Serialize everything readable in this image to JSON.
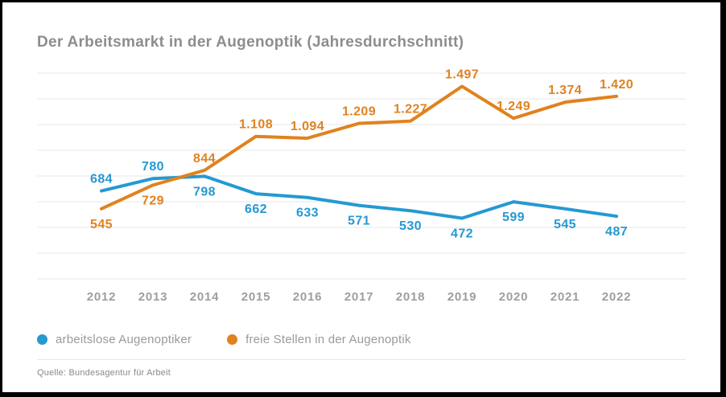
{
  "title": "Der Arbeitsmarkt in der Augenoptik (Jahresdurchschnitt)",
  "source": "Quelle: Bundesagentur für Arbeit",
  "colors": {
    "blue": "#2599d2",
    "orange": "#e0821f",
    "gridline": "#e7e7e7",
    "title_text": "#8d8d8d",
    "axis_text": "#9e9e9e",
    "legend_text": "#9a9a9a",
    "frame": "#000000"
  },
  "legend": [
    {
      "label": "arbeitslose Augenoptiker",
      "color": "#2599d2"
    },
    {
      "label": "freie Stellen in der Augenoptik",
      "color": "#e0821f"
    }
  ],
  "chart_data": {
    "type": "line",
    "title": "Der Arbeitsmarkt in der Augenoptik (Jahresdurchschnitt)",
    "xlabel": "",
    "ylabel": "",
    "categories": [
      "2012",
      "2013",
      "2014",
      "2015",
      "2016",
      "2017",
      "2018",
      "2019",
      "2020",
      "2021",
      "2022"
    ],
    "series": [
      {
        "name": "arbeitslose Augenoptiker",
        "color": "#2599d2",
        "values": [
          684,
          780,
          798,
          662,
          633,
          571,
          530,
          472,
          599,
          545,
          487
        ],
        "labels": [
          "684",
          "780",
          "798",
          "662",
          "633",
          "571",
          "530",
          "472",
          "599",
          "545",
          "487"
        ],
        "label_position": [
          "above",
          "above",
          "below",
          "below",
          "below",
          "below",
          "below",
          "below",
          "below",
          "below",
          "below"
        ]
      },
      {
        "name": "freie Stellen in der Augenoptik",
        "color": "#e0821f",
        "values": [
          545,
          729,
          844,
          1108,
          1094,
          1209,
          1227,
          1497,
          1249,
          1374,
          1420
        ],
        "labels": [
          "545",
          "729",
          "844",
          "1.108",
          "1.094",
          "1.209",
          "1.227",
          "1.497",
          "1.249",
          "1.374",
          "1.420"
        ],
        "label_position": [
          "below",
          "below",
          "above",
          "above",
          "above",
          "above",
          "above",
          "above",
          "above",
          "above",
          "above"
        ]
      }
    ],
    "ylim": [
      0,
      1600
    ],
    "gridline_step": 200,
    "grid": true,
    "legend_position": "bottom"
  }
}
